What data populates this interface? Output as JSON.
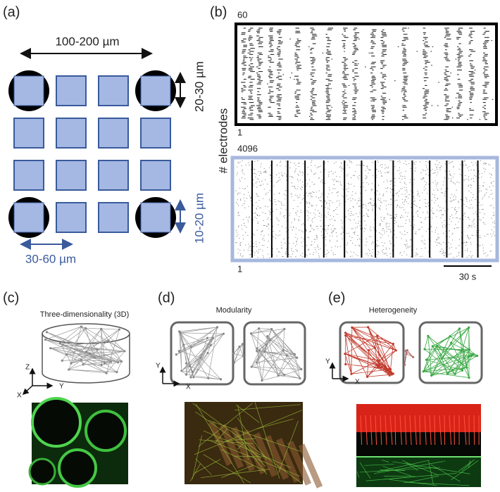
{
  "panel_a": {
    "label": "(a)",
    "width_label": "100-200 µm",
    "height_label": "20-30 µm",
    "electrode_label": "10-20 µm",
    "pitch_label": "30-60 µm"
  },
  "panel_b": {
    "label": "(b)",
    "axis_label": "# electrodes",
    "top_raster": {
      "max_label": "60",
      "min_label": "1"
    },
    "bottom_raster": {
      "max_label": "4096",
      "min_label": "1"
    },
    "scale_bar": "30 s"
  },
  "panel_c": {
    "label": "(c)",
    "title": "Three-dimensionality (3D)",
    "axes": [
      "Z",
      "Y",
      "X"
    ]
  },
  "panel_d": {
    "label": "(d)",
    "title": "Modularity",
    "axes": [
      "Y",
      "X"
    ]
  },
  "panel_e": {
    "label": "(e)",
    "title": "Heterogeneity",
    "axes": [
      "Y",
      "X"
    ]
  }
}
